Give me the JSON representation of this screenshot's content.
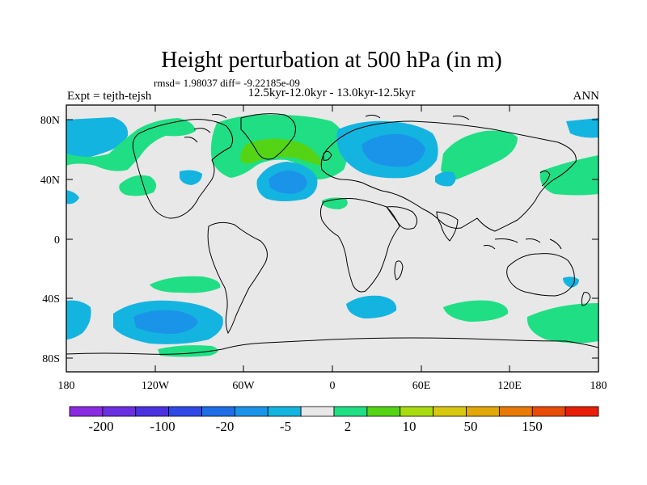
{
  "title": "Height perturbation at 500 hPa (in m)",
  "stats": "rmsd= 1.98037 diff= -9.22185e-09",
  "left_label": "Expt = tejth-tejsh",
  "center_label": "12.5kyr-12.0kyr - 13.0kyr-12.5kyr",
  "right_label": "ANN",
  "map": {
    "lat_ticks": [
      "80N",
      "40N",
      "0",
      "40S",
      "80S"
    ],
    "lon_ticks": [
      "180",
      "120W",
      "60W",
      "0",
      "60E",
      "120E",
      "180"
    ]
  },
  "colorbar": {
    "colors": [
      "#8a2be2",
      "#6a2fe0",
      "#4b32e0",
      "#2e49e8",
      "#1f6ee8",
      "#1a94e8",
      "#14b4e0",
      "#e8e8e8",
      "#20de84",
      "#54d414",
      "#a8dc10",
      "#d8c810",
      "#e2a808",
      "#e87a08",
      "#e84c08",
      "#e81e08"
    ],
    "labels": [
      "-200",
      "-100",
      "-20",
      "-5",
      "2",
      "10",
      "50",
      "150"
    ]
  },
  "colors": {
    "land_background": "#e8e8e8",
    "neg_weak": "#14b4e0",
    "neg_mid": "#1a94e8",
    "pos_weak": "#20de84",
    "pos_mid": "#54d414"
  }
}
